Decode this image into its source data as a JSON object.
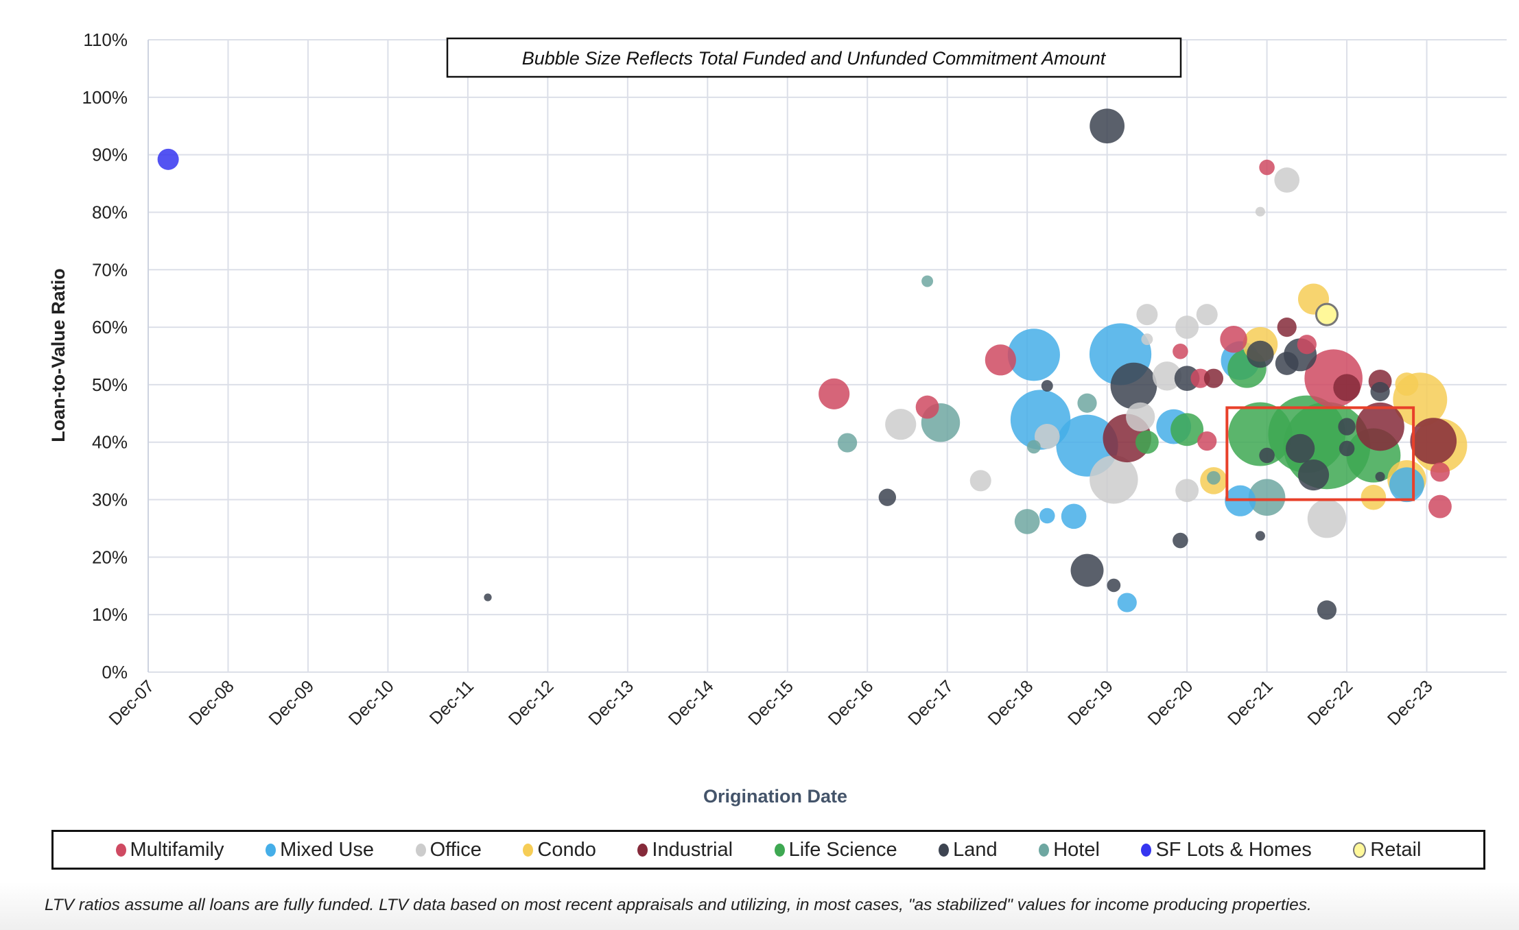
{
  "chart_data": {
    "type": "scatter",
    "subtype": "bubble",
    "annotation": "Bubble Size Reflects Total Funded and Unfunded Commitment Amount",
    "xlabel": "Origination Date",
    "ylabel": "Loan-to-Value Ratio",
    "x_ticks": [
      "Dec-07",
      "Dec-08",
      "Dec-09",
      "Dec-10",
      "Dec-11",
      "Dec-12",
      "Dec-13",
      "Dec-14",
      "Dec-15",
      "Dec-16",
      "Dec-17",
      "Dec-18",
      "Dec-19",
      "Dec-20",
      "Dec-21",
      "Dec-22",
      "Dec-23"
    ],
    "y_ticks": [
      "0%",
      "10%",
      "20%",
      "30%",
      "40%",
      "50%",
      "60%",
      "70%",
      "80%",
      "90%",
      "100%",
      "110%"
    ],
    "xlim": [
      "2007-12",
      "2024-12"
    ],
    "ylim": [
      0,
      110
    ],
    "grid": true,
    "legend_placement": "bottom",
    "highlight_box": {
      "x": [
        "2021-06",
        "2023-10"
      ],
      "y": [
        30,
        46
      ],
      "color": "#e8402a"
    },
    "categories": [
      {
        "name": "Multifamily",
        "color": "#cf4a62"
      },
      {
        "name": "Mixed Use",
        "color": "#45aee8"
      },
      {
        "name": "Office",
        "color": "#cccccc"
      },
      {
        "name": "Condo",
        "color": "#f6cd56"
      },
      {
        "name": "Industrial",
        "color": "#852a3a"
      },
      {
        "name": "Life Science",
        "color": "#3ea852"
      },
      {
        "name": "Land",
        "color": "#3d4451"
      },
      {
        "name": "Hotel",
        "color": "#6ea7a1"
      },
      {
        "name": "SF Lots & Homes",
        "color": "#3535f0"
      },
      {
        "name": "Retail",
        "color": "#fff89a"
      }
    ],
    "points": [
      {
        "c": "SF Lots & Homes",
        "date": "2008-03",
        "ltv": 89.2,
        "size": 11
      },
      {
        "c": "Land",
        "date": "2012-03",
        "ltv": 13,
        "size": 4
      },
      {
        "c": "Multifamily",
        "date": "2016-07",
        "ltv": 48.4,
        "size": 16
      },
      {
        "c": "Hotel",
        "date": "2016-09",
        "ltv": 39.9,
        "size": 10
      },
      {
        "c": "Land",
        "date": "2017-03",
        "ltv": 30.4,
        "size": 9
      },
      {
        "c": "Office",
        "date": "2017-05",
        "ltv": 43.1,
        "size": 16
      },
      {
        "c": "Hotel",
        "date": "2017-09",
        "ltv": 68,
        "size": 6
      },
      {
        "c": "Multifamily",
        "date": "2017-09",
        "ltv": 46.1,
        "size": 12
      },
      {
        "c": "Hotel",
        "date": "2017-11",
        "ltv": 43.4,
        "size": 20
      },
      {
        "c": "Office",
        "date": "2018-05",
        "ltv": 33.3,
        "size": 11
      },
      {
        "c": "Multifamily",
        "date": "2018-08",
        "ltv": 54.3,
        "size": 16
      },
      {
        "c": "Hotel",
        "date": "2018-12",
        "ltv": 26.2,
        "size": 13
      },
      {
        "c": "Mixed Use",
        "date": "2019-01",
        "ltv": 55.2,
        "size": 27
      },
      {
        "c": "Hotel",
        "date": "2019-01",
        "ltv": 39.2,
        "size": 7
      },
      {
        "c": "Mixed Use",
        "date": "2019-02",
        "ltv": 43.9,
        "size": 31
      },
      {
        "c": "Land",
        "date": "2019-03",
        "ltv": 49.8,
        "size": 6
      },
      {
        "c": "Office",
        "date": "2019-03",
        "ltv": 41,
        "size": 13
      },
      {
        "c": "Mixed Use",
        "date": "2019-03",
        "ltv": 27.2,
        "size": 8
      },
      {
        "c": "Mixed Use",
        "date": "2019-07",
        "ltv": 27.1,
        "size": 13
      },
      {
        "c": "Mixed Use",
        "date": "2019-09",
        "ltv": 39.4,
        "size": 32
      },
      {
        "c": "Land",
        "date": "2019-09",
        "ltv": 17.7,
        "size": 17
      },
      {
        "c": "Hotel",
        "date": "2019-09",
        "ltv": 46.8,
        "size": 10
      },
      {
        "c": "Land",
        "date": "2019-12",
        "ltv": 95,
        "size": 18
      },
      {
        "c": "Land",
        "date": "2020-01",
        "ltv": 15.1,
        "size": 7
      },
      {
        "c": "Office",
        "date": "2020-01",
        "ltv": 33.5,
        "size": 25
      },
      {
        "c": "Mixed Use",
        "date": "2020-02",
        "ltv": 55.3,
        "size": 32
      },
      {
        "c": "Mixed Use",
        "date": "2020-03",
        "ltv": 12.1,
        "size": 10
      },
      {
        "c": "Industrial",
        "date": "2020-03",
        "ltv": 40.7,
        "size": 25
      },
      {
        "c": "Land",
        "date": "2020-04",
        "ltv": 49.8,
        "size": 24
      },
      {
        "c": "Office",
        "date": "2020-05",
        "ltv": 44.4,
        "size": 15
      },
      {
        "c": "Office",
        "date": "2020-06",
        "ltv": 57.9,
        "size": 6
      },
      {
        "c": "Office",
        "date": "2020-06",
        "ltv": 62.2,
        "size": 11
      },
      {
        "c": "Life Science",
        "date": "2020-06",
        "ltv": 40,
        "size": 12
      },
      {
        "c": "Office",
        "date": "2020-09",
        "ltv": 51.5,
        "size": 15
      },
      {
        "c": "Mixed Use",
        "date": "2020-10",
        "ltv": 42.7,
        "size": 18
      },
      {
        "c": "Multifamily",
        "date": "2020-11",
        "ltv": 55.8,
        "size": 8
      },
      {
        "c": "Land",
        "date": "2020-11",
        "ltv": 22.9,
        "size": 8
      },
      {
        "c": "Office",
        "date": "2020-12",
        "ltv": 60,
        "size": 12
      },
      {
        "c": "Office",
        "date": "2020-12",
        "ltv": 31.6,
        "size": 12
      },
      {
        "c": "Land",
        "date": "2020-12",
        "ltv": 51.1,
        "size": 13
      },
      {
        "c": "Life Science",
        "date": "2020-12",
        "ltv": 42.2,
        "size": 17
      },
      {
        "c": "Multifamily",
        "date": "2021-02",
        "ltv": 51.1,
        "size": 10
      },
      {
        "c": "Office",
        "date": "2021-03",
        "ltv": 62.2,
        "size": 11
      },
      {
        "c": "Multifamily",
        "date": "2021-03",
        "ltv": 40.2,
        "size": 10
      },
      {
        "c": "Condo",
        "date": "2021-04",
        "ltv": 33.3,
        "size": 14
      },
      {
        "c": "Hotel",
        "date": "2021-04",
        "ltv": 33.8,
        "size": 7
      },
      {
        "c": "Industrial",
        "date": "2021-04",
        "ltv": 51.1,
        "size": 10
      },
      {
        "c": "Multifamily",
        "date": "2021-07",
        "ltv": 57.9,
        "size": 14
      },
      {
        "c": "Mixed Use",
        "date": "2021-08",
        "ltv": 54.2,
        "size": 20
      },
      {
        "c": "Mixed Use",
        "date": "2021-08",
        "ltv": 29.8,
        "size": 16
      },
      {
        "c": "Life Science",
        "date": "2021-09",
        "ltv": 52.8,
        "size": 20
      },
      {
        "c": "Land",
        "date": "2021-11",
        "ltv": 55.3,
        "size": 14
      },
      {
        "c": "Condo",
        "date": "2021-11",
        "ltv": 57,
        "size": 18
      },
      {
        "c": "Office",
        "date": "2021-11",
        "ltv": 80.1,
        "size": 5
      },
      {
        "c": "Life Science",
        "date": "2021-11",
        "ltv": 41.4,
        "size": 33
      },
      {
        "c": "Land",
        "date": "2021-11",
        "ltv": 23.7,
        "size": 5
      },
      {
        "c": "Multifamily",
        "date": "2021-12",
        "ltv": 87.8,
        "size": 8
      },
      {
        "c": "Hotel",
        "date": "2021-12",
        "ltv": 30.4,
        "size": 19
      },
      {
        "c": "Land",
        "date": "2021-12",
        "ltv": 37.7,
        "size": 8
      },
      {
        "c": "Industrial",
        "date": "2022-03",
        "ltv": 60,
        "size": 10
      },
      {
        "c": "Land",
        "date": "2022-03",
        "ltv": 53.7,
        "size": 12
      },
      {
        "c": "Office",
        "date": "2022-03",
        "ltv": 85.6,
        "size": 13
      },
      {
        "c": "Land",
        "date": "2022-05",
        "ltv": 55.2,
        "size": 17
      },
      {
        "c": "Land",
        "date": "2022-05",
        "ltv": 38.9,
        "size": 15
      },
      {
        "c": "Life Science",
        "date": "2022-06",
        "ltv": 41.4,
        "size": 40
      },
      {
        "c": "Multifamily",
        "date": "2022-06",
        "ltv": 57,
        "size": 10
      },
      {
        "c": "Condo",
        "date": "2022-07",
        "ltv": 64.9,
        "size": 16
      },
      {
        "c": "Land",
        "date": "2022-07",
        "ltv": 34.3,
        "size": 16
      },
      {
        "c": "Retail",
        "date": "2022-09",
        "ltv": 62.2,
        "size": 11
      },
      {
        "c": "Land",
        "date": "2022-09",
        "ltv": 10.8,
        "size": 10
      },
      {
        "c": "Office",
        "date": "2022-09",
        "ltv": 26.7,
        "size": 20
      },
      {
        "c": "Life Science",
        "date": "2022-09",
        "ltv": 39.4,
        "size": 45
      },
      {
        "c": "Multifamily",
        "date": "2022-10",
        "ltv": 51.1,
        "size": 30
      },
      {
        "c": "Industrial",
        "date": "2022-12",
        "ltv": 49.5,
        "size": 14
      },
      {
        "c": "Land",
        "date": "2022-12",
        "ltv": 38.9,
        "size": 8
      },
      {
        "c": "Land",
        "date": "2022-12",
        "ltv": 42.7,
        "size": 9
      },
      {
        "c": "Condo",
        "date": "2023-04",
        "ltv": 30.4,
        "size": 13
      },
      {
        "c": "Life Science",
        "date": "2023-04",
        "ltv": 37.7,
        "size": 28
      },
      {
        "c": "Land",
        "date": "2023-05",
        "ltv": 34,
        "size": 5
      },
      {
        "c": "Industrial",
        "date": "2023-05",
        "ltv": 42.7,
        "size": 25
      },
      {
        "c": "Industrial",
        "date": "2023-05",
        "ltv": 50.6,
        "size": 12
      },
      {
        "c": "Land",
        "date": "2023-05",
        "ltv": 48.8,
        "size": 10
      },
      {
        "c": "Mixed Use",
        "date": "2023-09",
        "ltv": 32.6,
        "size": 18
      },
      {
        "c": "Condo",
        "date": "2023-09",
        "ltv": 50.1,
        "size": 12
      },
      {
        "c": "Condo",
        "date": "2023-09",
        "ltv": 33.5,
        "size": 20
      },
      {
        "c": "Condo",
        "date": "2023-11",
        "ltv": 47.4,
        "size": 28
      },
      {
        "c": "Industrial",
        "date": "2024-01",
        "ltv": 40.2,
        "size": 24
      },
      {
        "c": "Condo",
        "date": "2024-02",
        "ltv": 39.4,
        "size": 28
      },
      {
        "c": "Multifamily",
        "date": "2024-02",
        "ltv": 28.8,
        "size": 12
      },
      {
        "c": "Multifamily",
        "date": "2024-02",
        "ltv": 34.8,
        "size": 10
      }
    ]
  },
  "footnote": "LTV ratios assume all loans are fully funded.  LTV data based on most recent appraisals and utilizing, in most cases, \"as stabilized\" values for income producing properties."
}
